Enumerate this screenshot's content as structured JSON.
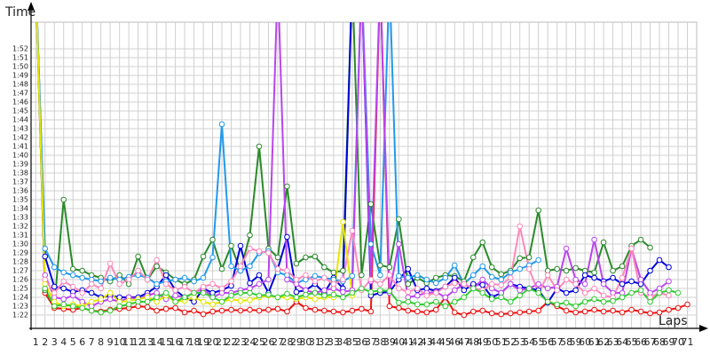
{
  "chart_data": {
    "type": "line",
    "y_label": "Time",
    "x_label": "Laps",
    "x": [
      1,
      2,
      3,
      4,
      5,
      6,
      7,
      8,
      9,
      10,
      11,
      12,
      13,
      14,
      15,
      16,
      17,
      18,
      19,
      20,
      21,
      22,
      23,
      24,
      25,
      26,
      27,
      28,
      29,
      30,
      31,
      32,
      33,
      34,
      35,
      36,
      37,
      38,
      39,
      40,
      41,
      42,
      43,
      44,
      45,
      46,
      47,
      48,
      49,
      50,
      51,
      52,
      53,
      54,
      55,
      56,
      57,
      58,
      59,
      60,
      61,
      62,
      63,
      64,
      65,
      66,
      67,
      68,
      69,
      70,
      71
    ],
    "xlim": [
      0.5,
      72
    ],
    "ylim": [
      80.5,
      115
    ],
    "yticks": [
      {
        "value": 82,
        "label": "1:22"
      },
      {
        "value": 83,
        "label": "1:23"
      },
      {
        "value": 84,
        "label": "1:24"
      },
      {
        "value": 85,
        "label": "1:25"
      },
      {
        "value": 86,
        "label": "1:26"
      },
      {
        "value": 87,
        "label": "1:27"
      },
      {
        "value": 88,
        "label": "1:28"
      },
      {
        "value": 89,
        "label": "1:29"
      },
      {
        "value": 90,
        "label": "1:30"
      },
      {
        "value": 91,
        "label": "1:31"
      },
      {
        "value": 92,
        "label": "1:32"
      },
      {
        "value": 93,
        "label": "1:33"
      },
      {
        "value": 94,
        "label": "1:34"
      },
      {
        "value": 95,
        "label": "1:35"
      },
      {
        "value": 96,
        "label": "1:36"
      },
      {
        "value": 97,
        "label": "1:37"
      },
      {
        "value": 98,
        "label": "1:38"
      },
      {
        "value": 99,
        "label": "1:39"
      },
      {
        "value": 100,
        "label": "1:40"
      },
      {
        "value": 101,
        "label": "1:41"
      },
      {
        "value": 102,
        "label": "1:42"
      },
      {
        "value": 103,
        "label": "1:43"
      },
      {
        "value": 104,
        "label": "1:44"
      },
      {
        "value": 105,
        "label": "1:45"
      },
      {
        "value": 106,
        "label": "1:46"
      },
      {
        "value": 107,
        "label": "1:47"
      },
      {
        "value": 108,
        "label": "1:48"
      },
      {
        "value": 109,
        "label": "1:49"
      },
      {
        "value": 110,
        "label": "1:50"
      },
      {
        "value": 111,
        "label": "1:51"
      },
      {
        "value": 112,
        "label": "1:52"
      }
    ],
    "grid": true,
    "series": [
      {
        "color": "#ee1111",
        "values": [
          120,
          84.5,
          82.8,
          82.7,
          82.6,
          82.8,
          82.5,
          82.4,
          82.6,
          82.7,
          82.8,
          83,
          82.9,
          82.5,
          82.7,
          82.8,
          82.3,
          82.5,
          82.1,
          82.4,
          82.5,
          82.6,
          82.5,
          82.6,
          82.5,
          82.6,
          82.7,
          82.4,
          83.5,
          82.8,
          82.6,
          82.5,
          82.4,
          82.3,
          82.5,
          82.7,
          82.4,
          120,
          83,
          82.8,
          82.5,
          82.4,
          82.3,
          82.6,
          84,
          82.3,
          82,
          82.4,
          82.5,
          82.2,
          82.1,
          82.2,
          82.3,
          82.4,
          82.5,
          83.5,
          83,
          82.5,
          82.3,
          82.4,
          82.6,
          82.4,
          82.5,
          82.3,
          82.6,
          82.4,
          82.2,
          82.3,
          82.6,
          82.8,
          83.2
        ]
      },
      {
        "color": "#2a8a2a",
        "values": [
          120,
          84.8,
          83,
          95,
          87.2,
          87,
          86.5,
          86.2,
          85.8,
          86.5,
          85.5,
          88.6,
          86,
          87.5,
          86.8,
          86,
          85.5,
          86,
          88.6,
          90.5,
          87.2,
          89.8,
          87,
          91,
          101,
          89.5,
          88.5,
          96.5,
          87.8,
          88.5,
          88.6,
          87.4,
          86.8,
          87,
          120,
          86.5,
          94.5,
          87.6,
          87.4,
          92.8,
          85.5,
          86.2,
          85.6,
          86.2,
          86.5,
          86.4,
          85.8,
          88.5,
          90.2,
          87.4,
          86.6,
          87,
          88.4,
          88.5,
          93.8,
          87,
          87.2,
          87,
          87.3,
          87,
          86.8,
          90.2,
          87,
          87.5,
          89.8,
          90.5,
          89.6,
          null,
          null,
          null,
          null
        ]
      },
      {
        "color": "#0000dd",
        "values": [
          120,
          88.6,
          85.2,
          85,
          84.6,
          84.8,
          84.5,
          84,
          84.2,
          84,
          84,
          84,
          84.5,
          85.2,
          86.5,
          84.8,
          84,
          83.5,
          85,
          84.5,
          84.8,
          85.3,
          89.8,
          85.6,
          86.5,
          84.5,
          87.2,
          90.8,
          84.6,
          84.8,
          85.5,
          84.5,
          86.2,
          85,
          120,
          120,
          84.2,
          84.5,
          84.6,
          86,
          87.2,
          84.8,
          85,
          84.7,
          85.2,
          86.2,
          84.8,
          85.5,
          85.4,
          84,
          84.5,
          85.5,
          85.2,
          85,
          84.8,
          83.4,
          85,
          84.5,
          84.8,
          86.5,
          86.2,
          85.8,
          86.2,
          85.5,
          85.8,
          85.5,
          87,
          88.2,
          87.4,
          null,
          null
        ]
      },
      {
        "color": "#2299ee",
        "values": [
          120,
          89.5,
          87.4,
          86.8,
          86.5,
          86.2,
          86,
          85.8,
          86.2,
          86,
          86.3,
          86.5,
          86.2,
          85.5,
          85.8,
          86,
          86.2,
          85.8,
          86.2,
          88.5,
          103.5,
          87.5,
          87,
          87.5,
          89,
          89.2,
          86.8,
          86.5,
          85.6,
          86,
          86.4,
          86.2,
          86,
          85.8,
          86.4,
          120,
          90,
          86.5,
          120,
          86.4,
          86.2,
          86.5,
          86,
          85.6,
          86.2,
          87.6,
          85.5,
          86.5,
          87.5,
          86.3,
          86,
          86.8,
          87.2,
          87.6,
          88.2,
          null,
          null,
          null,
          null,
          null,
          null,
          null,
          null,
          null,
          null,
          null,
          null,
          null,
          null,
          null,
          null
        ]
      },
      {
        "color": "#bb44ee",
        "values": [
          null,
          86.5,
          84,
          83.8,
          84.2,
          83.5,
          83,
          83.5,
          83.8,
          83.5,
          84,
          83.8,
          84.2,
          84.5,
          83.8,
          84.2,
          84,
          84.5,
          85,
          84,
          84.5,
          84.5,
          84.8,
          85,
          85.5,
          86,
          120,
          86,
          85.5,
          84.8,
          84.5,
          84.8,
          85,
          84.6,
          84.8,
          120,
          85.8,
          120,
          84.5,
          90,
          84,
          84.2,
          84.5,
          84.6,
          84,
          84.8,
          85.5,
          85,
          86,
          85,
          84.5,
          85.5,
          84.8,
          85,
          85.5,
          85,
          85.2,
          89.5,
          86,
          85.5,
          90.5,
          85.5,
          84.5,
          84.5,
          89.5,
          86,
          84.5,
          85,
          85.8,
          null,
          null
        ]
      },
      {
        "color": "#ff88bb",
        "values": [
          null,
          86,
          84.5,
          85.8,
          85.2,
          84.5,
          85.5,
          85,
          87.8,
          85.5,
          86,
          87,
          86,
          88.2,
          85.5,
          84.8,
          85.2,
          84.5,
          85.2,
          85.5,
          85,
          85.8,
          87.5,
          89.5,
          89.2,
          89,
          87.2,
          87,
          86,
          86.5,
          85.8,
          86.2,
          85.5,
          86,
          91.5,
          84.8,
          86,
          85.5,
          86.5,
          85,
          84.6,
          85,
          84.2,
          84.5,
          85.2,
          85.6,
          85.5,
          85,
          84.8,
          85.5,
          85.4,
          86.2,
          92,
          87.2,
          84.5,
          86.5,
          84.8,
          86,
          85.5,
          84.5,
          85,
          84.2,
          84,
          86.2,
          89.5,
          84.5,
          84,
          84.5,
          84.2,
          null,
          null
        ]
      },
      {
        "color": "#e6e600",
        "values": [
          120,
          85.5,
          83.5,
          83,
          83.2,
          83,
          83.5,
          83.8,
          84.5,
          83.5,
          83.6,
          83.8,
          84,
          83.5,
          84.2,
          83.5,
          83.6,
          84,
          83.5,
          83.2,
          83.5,
          83.8,
          83.6,
          83.7,
          84,
          84.2,
          84,
          84,
          83.8,
          84,
          83.8,
          84,
          84,
          92.5,
          84.2,
          null,
          null,
          null,
          null,
          null,
          null,
          null,
          null,
          null,
          null,
          null,
          null,
          null,
          null,
          null,
          null,
          null,
          null,
          null,
          null,
          null,
          null,
          null,
          null,
          null,
          null,
          null,
          null,
          null,
          null,
          null,
          null,
          null,
          null,
          null,
          null
        ]
      },
      {
        "color": "#33cc33",
        "values": [
          null,
          85,
          83,
          83.2,
          83,
          82.8,
          82.5,
          82.3,
          82.5,
          83,
          83.2,
          83.5,
          83.5,
          84,
          84.5,
          83.5,
          84,
          84.5,
          84.5,
          84,
          83.5,
          84.2,
          84.5,
          84.5,
          84.2,
          84.3,
          84,
          84.4,
          84,
          84.3,
          84.5,
          84.2,
          84.3,
          84,
          84.5,
          85,
          84.6,
          84.8,
          84.7,
          83.4,
          83.5,
          83.2,
          83.2,
          83.5,
          83,
          83.5,
          84,
          85,
          84.5,
          83.8,
          84,
          83.5,
          84.2,
          85,
          84.5,
          83.5,
          83.2,
          83.4,
          83,
          83.5,
          83.8,
          83.5,
          83.6,
          84,
          84.5,
          84.8,
          83.5,
          84.5,
          84.8,
          84.5,
          null
        ]
      }
    ]
  }
}
